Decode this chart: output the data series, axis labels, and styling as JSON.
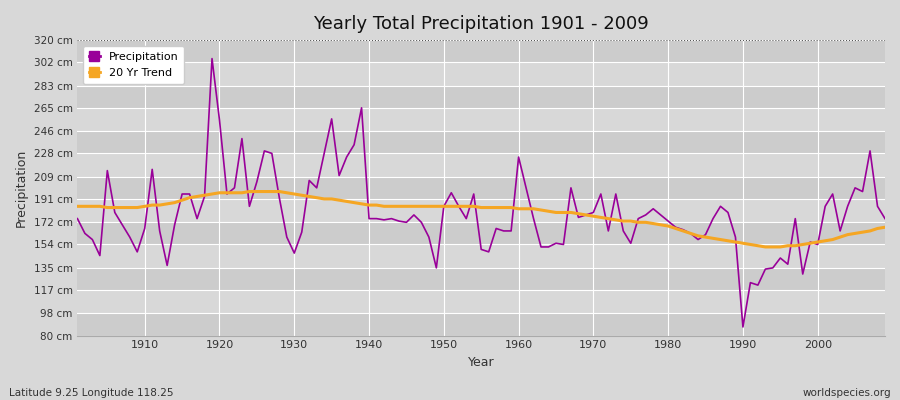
{
  "title": "Yearly Total Precipitation 1901 - 2009",
  "xlabel": "Year",
  "ylabel": "Precipitation",
  "subtitle_lat_lon": "Latitude 9.25 Longitude 118.25",
  "source": "worldspecies.org",
  "bg_color": "#d8d8d8",
  "plot_bg_color": "#d8d8d8",
  "precip_color": "#990099",
  "trend_color": "#f5a623",
  "ylim": [
    80,
    320
  ],
  "yticks": [
    80,
    98,
    117,
    135,
    154,
    172,
    191,
    209,
    228,
    246,
    265,
    283,
    302,
    320
  ],
  "ytick_labels": [
    "80 cm",
    "98 cm",
    "117 cm",
    "135 cm",
    "154 cm",
    "172 cm",
    "191 cm",
    "209 cm",
    "228 cm",
    "246 cm",
    "265 cm",
    "283 cm",
    "302 cm",
    "320 cm"
  ],
  "xlim": [
    1901,
    2009
  ],
  "xticks": [
    1910,
    1920,
    1930,
    1940,
    1950,
    1960,
    1970,
    1980,
    1990,
    2000
  ],
  "years": [
    1901,
    1902,
    1903,
    1904,
    1905,
    1906,
    1907,
    1908,
    1909,
    1910,
    1911,
    1912,
    1913,
    1914,
    1915,
    1916,
    1917,
    1918,
    1919,
    1920,
    1921,
    1922,
    1923,
    1924,
    1925,
    1926,
    1927,
    1928,
    1929,
    1930,
    1931,
    1932,
    1933,
    1934,
    1935,
    1936,
    1937,
    1938,
    1939,
    1940,
    1941,
    1942,
    1943,
    1944,
    1945,
    1946,
    1947,
    1948,
    1949,
    1950,
    1951,
    1952,
    1953,
    1954,
    1955,
    1956,
    1957,
    1958,
    1959,
    1960,
    1961,
    1962,
    1963,
    1964,
    1965,
    1966,
    1967,
    1968,
    1969,
    1970,
    1971,
    1972,
    1973,
    1974,
    1975,
    1976,
    1977,
    1978,
    1979,
    1980,
    1981,
    1982,
    1983,
    1984,
    1985,
    1986,
    1987,
    1988,
    1989,
    1990,
    1991,
    1992,
    1993,
    1994,
    1995,
    1996,
    1997,
    1998,
    1999,
    2000,
    2001,
    2002,
    2003,
    2004,
    2005,
    2006,
    2007,
    2008,
    2009
  ],
  "precip": [
    175,
    163,
    158,
    145,
    214,
    180,
    170,
    160,
    148,
    167,
    215,
    165,
    137,
    170,
    195,
    195,
    175,
    193,
    305,
    255,
    195,
    200,
    240,
    185,
    205,
    230,
    228,
    192,
    160,
    147,
    164,
    206,
    200,
    228,
    256,
    210,
    225,
    235,
    265,
    175,
    175,
    174,
    175,
    173,
    172,
    178,
    172,
    160,
    135,
    185,
    196,
    185,
    175,
    195,
    150,
    148,
    167,
    165,
    165,
    225,
    200,
    175,
    152,
    152,
    155,
    154,
    200,
    176,
    178,
    180,
    195,
    165,
    195,
    165,
    155,
    175,
    178,
    183,
    178,
    173,
    168,
    166,
    163,
    158,
    162,
    175,
    185,
    180,
    160,
    87,
    123,
    121,
    134,
    135,
    143,
    138,
    175,
    130,
    156,
    154,
    185,
    195,
    165,
    185,
    200,
    197,
    230,
    185,
    175
  ],
  "trend": [
    185,
    185,
    185,
    185,
    184,
    184,
    184,
    184,
    184,
    185,
    186,
    186,
    187,
    188,
    190,
    192,
    193,
    194,
    195,
    196,
    196,
    196,
    196,
    197,
    197,
    197,
    197,
    197,
    196,
    195,
    194,
    193,
    192,
    191,
    191,
    190,
    189,
    188,
    187,
    186,
    186,
    185,
    185,
    185,
    185,
    185,
    185,
    185,
    185,
    185,
    185,
    185,
    185,
    185,
    184,
    184,
    184,
    184,
    184,
    183,
    183,
    183,
    182,
    181,
    180,
    180,
    180,
    179,
    178,
    177,
    176,
    175,
    174,
    173,
    173,
    172,
    172,
    171,
    170,
    169,
    167,
    165,
    163,
    161,
    160,
    159,
    158,
    157,
    156,
    155,
    154,
    153,
    152,
    152,
    152,
    153,
    153,
    154,
    155,
    156,
    157,
    158,
    160,
    162,
    163,
    164,
    165,
    167,
    168
  ],
  "band_colors": [
    "#cccccc",
    "#d8d8d8"
  ],
  "white_grid_color": "#ffffff"
}
